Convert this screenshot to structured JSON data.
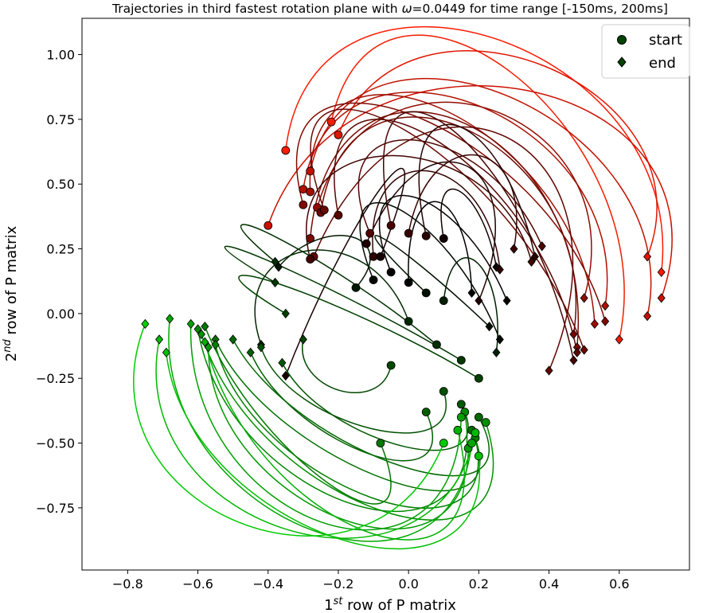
{
  "chart_data": {
    "type": "scatter",
    "title_prefix": "Trajectories in third fastest rotation plane with ",
    "title_omega_symbol": "ω",
    "title_suffix": "=0.0449 for time range [-150ms, 200ms]",
    "xlabel_base": "1",
    "xlabel_sup": "st",
    "xlabel_rest": " row of P matrix",
    "ylabel_base": "2",
    "ylabel_sup": "nd",
    "ylabel_rest": " row of P matrix",
    "xlim": [
      -0.93,
      0.8
    ],
    "ylim": [
      -0.99,
      1.14
    ],
    "xticks": [
      -0.8,
      -0.6,
      -0.4,
      -0.2,
      0.0,
      0.2,
      0.4,
      0.6
    ],
    "xtick_labels": [
      "−0.8",
      "−0.6",
      "−0.4",
      "−0.2",
      "0.0",
      "0.2",
      "0.4",
      "0.6"
    ],
    "yticks": [
      -0.75,
      -0.5,
      -0.25,
      0.0,
      0.25,
      0.5,
      0.75,
      1.0
    ],
    "ytick_labels": [
      "−0.75",
      "−0.50",
      "−0.25",
      "0.00",
      "0.25",
      "0.50",
      "0.75",
      "1.00"
    ],
    "grid": false,
    "legend_position": "upper-right",
    "legend": [
      {
        "label": "start",
        "marker": "circle",
        "color": "#004400"
      },
      {
        "label": "end",
        "marker": "diamond",
        "color": "#004400"
      }
    ],
    "color_scale": {
      "red_end": "#ff0000",
      "dark_mid": "#000000",
      "green_end": "#00ff00"
    },
    "series": [
      {
        "color": "#ff1a00",
        "start": [
          -0.35,
          0.63
        ],
        "end": [
          0.72,
          0.16
        ],
        "apex": [
          0.25,
          1.08
        ]
      },
      {
        "color": "#f21d00",
        "start": [
          -0.22,
          0.74
        ],
        "end": [
          0.6,
          -0.1
        ],
        "apex": [
          0.3,
          0.95
        ]
      },
      {
        "color": "#e01500",
        "start": [
          -0.2,
          0.69
        ],
        "end": [
          0.68,
          0.22
        ],
        "apex": [
          0.4,
          0.97
        ]
      },
      {
        "color": "#cc1000",
        "start": [
          -0.4,
          0.34
        ],
        "end": [
          0.72,
          0.06
        ],
        "apex": [
          0.35,
          0.88
        ]
      },
      {
        "color": "#c01200",
        "start": [
          -0.28,
          0.55
        ],
        "end": [
          0.68,
          -0.01
        ],
        "apex": [
          0.3,
          0.85
        ]
      },
      {
        "color": "#b01000",
        "start": [
          -0.3,
          0.48
        ],
        "end": [
          0.56,
          0.03
        ],
        "apex": [
          0.2,
          0.82
        ]
      },
      {
        "color": "#a00e00",
        "start": [
          -0.28,
          0.47
        ],
        "end": [
          0.53,
          -0.04
        ],
        "apex": [
          0.1,
          0.8
        ]
      },
      {
        "color": "#900c00",
        "start": [
          -0.26,
          0.41
        ],
        "end": [
          0.5,
          0.06
        ],
        "apex": [
          0.25,
          0.8
        ]
      },
      {
        "color": "#800a00",
        "start": [
          -0.3,
          0.42
        ],
        "end": [
          0.56,
          -0.03
        ],
        "apex": [
          0.0,
          0.78
        ]
      },
      {
        "color": "#780a00",
        "start": [
          -0.28,
          0.29
        ],
        "end": [
          0.48,
          -0.13
        ],
        "apex": [
          0.15,
          0.76
        ]
      },
      {
        "color": "#700800",
        "start": [
          -0.25,
          0.39
        ],
        "end": [
          0.47,
          -0.08
        ],
        "apex": [
          0.18,
          0.72
        ]
      },
      {
        "color": "#680800",
        "start": [
          -0.24,
          0.4
        ],
        "end": [
          0.5,
          -0.14
        ],
        "apex": [
          -0.05,
          0.74
        ]
      },
      {
        "color": "#600600",
        "start": [
          -0.27,
          0.22
        ],
        "end": [
          0.4,
          -0.22
        ],
        "apex": [
          0.3,
          0.7
        ]
      },
      {
        "color": "#580600",
        "start": [
          -0.2,
          0.38
        ],
        "end": [
          0.48,
          -0.15
        ],
        "apex": [
          0.05,
          0.7
        ]
      },
      {
        "color": "#500500",
        "start": [
          -0.11,
          0.31
        ],
        "end": [
          0.38,
          0.26
        ],
        "apex": [
          0.0,
          0.68
        ]
      },
      {
        "color": "#480400",
        "start": [
          -0.05,
          0.34
        ],
        "end": [
          0.47,
          -0.18
        ],
        "apex": [
          0.1,
          0.74
        ]
      },
      {
        "color": "#400400",
        "start": [
          -0.28,
          0.21
        ],
        "end": [
          0.35,
          0.2
        ],
        "apex": [
          -0.05,
          0.62
        ]
      },
      {
        "color": "#380300",
        "start": [
          0.0,
          0.31
        ],
        "end": [
          0.3,
          0.25
        ],
        "apex": [
          0.2,
          0.62
        ]
      },
      {
        "color": "#300200",
        "start": [
          -0.1,
          0.22
        ],
        "end": [
          0.26,
          0.17
        ],
        "apex": [
          0.05,
          0.56
        ]
      },
      {
        "color": "#280200",
        "start": [
          0.05,
          0.3
        ],
        "end": [
          0.36,
          0.22
        ],
        "apex": [
          0.12,
          0.74
        ]
      },
      {
        "color": "#200100",
        "start": [
          -0.12,
          0.27
        ],
        "end": [
          0.2,
          0.05
        ],
        "apex": [
          0.18,
          0.58
        ]
      },
      {
        "color": "#180000",
        "start": [
          -0.08,
          0.22
        ],
        "end": [
          -0.35,
          -0.24
        ],
        "apex": [
          -0.05,
          0.52
        ]
      },
      {
        "color": "#100000",
        "start": [
          0.1,
          0.29
        ],
        "end": [
          0.25,
          0.18
        ],
        "apex": [
          0.14,
          0.48
        ]
      },
      {
        "color": "#080000",
        "start": [
          -0.05,
          0.16
        ],
        "end": [
          0.28,
          0.05
        ],
        "apex": [
          0.0,
          0.46
        ]
      },
      {
        "color": "#000000",
        "start": [
          0.0,
          0.12
        ],
        "end": [
          0.18,
          0.08
        ],
        "apex": [
          0.08,
          0.44
        ]
      },
      {
        "color": "#000800",
        "start": [
          -0.1,
          0.13
        ],
        "end": [
          0.26,
          -0.1
        ],
        "apex": [
          -0.05,
          0.42
        ]
      },
      {
        "color": "#001000",
        "start": [
          0.05,
          0.08
        ],
        "end": [
          0.23,
          -0.05
        ],
        "apex": [
          -0.1,
          0.3
        ]
      },
      {
        "color": "#001800",
        "start": [
          -0.15,
          0.1
        ],
        "end": [
          -0.37,
          0.18
        ],
        "apex": [
          -0.15,
          0.3
        ]
      },
      {
        "color": "#002000",
        "start": [
          0.1,
          0.05
        ],
        "end": [
          0.25,
          -0.15
        ],
        "apex": [
          0.2,
          0.2
        ]
      },
      {
        "color": "#002800",
        "start": [
          0.0,
          -0.03
        ],
        "end": [
          -0.42,
          -0.12
        ],
        "apex": [
          -0.3,
          0.25
        ]
      },
      {
        "color": "#003000",
        "start": [
          0.08,
          -0.12
        ],
        "end": [
          -0.38,
          0.2
        ],
        "apex": [
          -0.4,
          0.3
        ]
      },
      {
        "color": "#003800",
        "start": [
          0.15,
          -0.18
        ],
        "end": [
          -0.38,
          0.12
        ],
        "apex": [
          -0.45,
          0.22
        ]
      },
      {
        "color": "#004000",
        "start": [
          0.2,
          -0.25
        ],
        "end": [
          -0.35,
          0.0
        ],
        "apex": [
          -0.4,
          0.12
        ]
      },
      {
        "color": "#004800",
        "start": [
          -0.05,
          -0.2
        ],
        "end": [
          -0.3,
          -0.1
        ],
        "apex": [
          -0.2,
          -0.3
        ]
      },
      {
        "color": "#005000",
        "start": [
          0.1,
          -0.3
        ],
        "end": [
          -0.42,
          -0.13
        ],
        "apex": [
          -0.1,
          -0.45
        ]
      },
      {
        "color": "#005800",
        "start": [
          0.15,
          -0.35
        ],
        "end": [
          -0.36,
          -0.19
        ],
        "apex": [
          0.0,
          -0.52
        ]
      },
      {
        "color": "#006000",
        "start": [
          0.05,
          -0.38
        ],
        "end": [
          -0.45,
          -0.15
        ],
        "apex": [
          -0.1,
          -0.55
        ]
      },
      {
        "color": "#006800",
        "start": [
          0.2,
          -0.4
        ],
        "end": [
          -0.5,
          -0.1
        ],
        "apex": [
          0.0,
          -0.6
        ]
      },
      {
        "color": "#007000",
        "start": [
          0.18,
          -0.45
        ],
        "end": [
          -0.55,
          -0.1
        ],
        "apex": [
          -0.05,
          -0.65
        ]
      },
      {
        "color": "#007800",
        "start": [
          -0.08,
          -0.5
        ],
        "end": [
          -0.58,
          -0.05
        ],
        "apex": [
          -0.2,
          -0.68
        ]
      },
      {
        "color": "#008000",
        "start": [
          0.19,
          -0.48
        ],
        "end": [
          -0.55,
          -0.12
        ],
        "apex": [
          -0.1,
          -0.72
        ]
      },
      {
        "color": "#008800",
        "start": [
          0.16,
          -0.38
        ],
        "end": [
          -0.6,
          -0.06
        ],
        "apex": [
          -0.15,
          -0.75
        ]
      },
      {
        "color": "#009000",
        "start": [
          0.22,
          -0.42
        ],
        "end": [
          -0.59,
          -0.08
        ],
        "apex": [
          -0.05,
          -0.78
        ]
      },
      {
        "color": "#009800",
        "start": [
          0.17,
          -0.52
        ],
        "end": [
          -0.57,
          -0.13
        ],
        "apex": [
          -0.2,
          -0.8
        ]
      },
      {
        "color": "#00a000",
        "start": [
          0.15,
          -0.4
        ],
        "end": [
          -0.62,
          -0.04
        ],
        "apex": [
          -0.25,
          -0.82
        ]
      },
      {
        "color": "#00a800",
        "start": [
          0.18,
          -0.5
        ],
        "end": [
          -0.68,
          -0.02
        ],
        "apex": [
          -0.3,
          -0.84
        ]
      },
      {
        "color": "#00b000",
        "start": [
          0.14,
          -0.45
        ],
        "end": [
          -0.58,
          -0.11
        ],
        "apex": [
          -0.1,
          -0.86
        ]
      },
      {
        "color": "#00b800",
        "start": [
          0.19,
          -0.46
        ],
        "end": [
          -0.71,
          -0.1
        ],
        "apex": [
          -0.35,
          -0.85
        ]
      },
      {
        "color": "#00c000",
        "start": [
          0.2,
          -0.55
        ],
        "end": [
          -0.69,
          -0.15
        ],
        "apex": [
          -0.2,
          -0.88
        ]
      },
      {
        "color": "#00cc00",
        "start": [
          0.1,
          -0.5
        ],
        "end": [
          -0.75,
          -0.04
        ],
        "apex": [
          -0.5,
          -0.82
        ]
      }
    ]
  }
}
